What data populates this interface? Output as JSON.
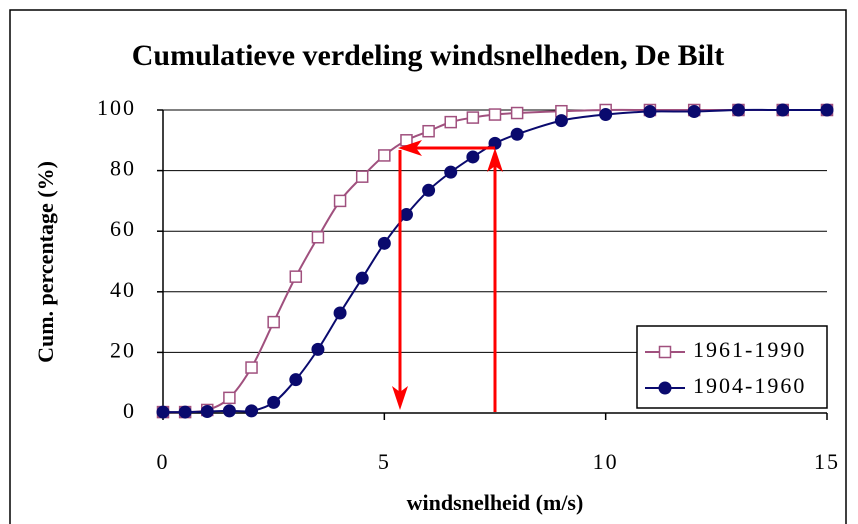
{
  "chart_data": {
    "type": "line",
    "title": "Cumulatieve verdeling windsnelheden, De Bilt",
    "x_label": "windsnelheid (m/s)",
    "y_label": "Cum. percentage (%)",
    "x": [
      0,
      0.5,
      1,
      1.5,
      2,
      2.5,
      3,
      3.5,
      4,
      4.5,
      5,
      5.5,
      6,
      6.5,
      7,
      7.5,
      8,
      9,
      10,
      11,
      12,
      13,
      14,
      15
    ],
    "series": [
      {
        "name": "1961-1990",
        "color": "#a0507e",
        "marker": "square",
        "values": [
          0.3,
          0.3,
          1,
          5,
          15,
          30,
          45,
          58,
          70,
          78,
          85,
          90,
          93,
          96,
          97.5,
          98.5,
          99,
          99.6,
          100,
          100,
          100,
          100,
          100,
          100
        ]
      },
      {
        "name": "1904-1960",
        "color": "#0a0a6e",
        "marker": "circle",
        "values": [
          0.3,
          0.3,
          0.5,
          0.7,
          0.7,
          3.5,
          11,
          21,
          33,
          44.5,
          56,
          65.5,
          73.5,
          79.5,
          84.5,
          89,
          92,
          96.5,
          98.5,
          99.5,
          99.5,
          100,
          100,
          100
        ]
      }
    ],
    "xlim": [
      0,
      15
    ],
    "xticks": [
      0,
      5,
      10,
      15
    ],
    "ylim": [
      0,
      100
    ],
    "yticks": [
      0,
      20,
      40,
      60,
      80,
      100
    ],
    "grid": true,
    "legend": "lower right"
  }
}
